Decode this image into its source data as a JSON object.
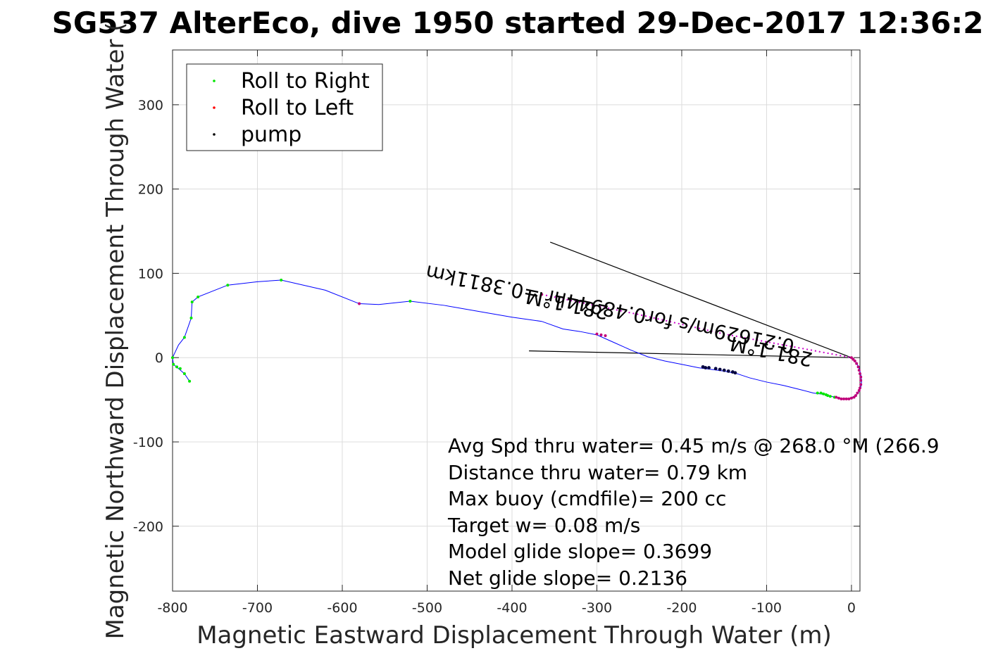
{
  "chart_data": {
    "type": "line",
    "title": "SG537 AlterEco, dive 1950 started 29-Dec-2017 12:36:2",
    "xlabel": "Magnetic Eastward Displacement Through Water (m)",
    "ylabel": "Magnetic Northward Displacement Through Water (",
    "xlim": [
      -800,
      10
    ],
    "ylim": [
      -277,
      365
    ],
    "xticks": [
      -800,
      -700,
      -600,
      -500,
      -400,
      -300,
      -200,
      -100,
      0
    ],
    "xtick_labels": [
      "-800",
      "-700",
      "-600",
      "-500",
      "-400",
      "-300",
      "-200",
      "-100",
      "0"
    ],
    "yticks": [
      -200,
      -100,
      0,
      100,
      200,
      300
    ],
    "ytick_labels": [
      "-200",
      "-100",
      "0",
      "100",
      "200",
      "300"
    ],
    "grid": true,
    "legend_position": "top-left",
    "legend": [
      {
        "label": "Roll to Right",
        "color": "#00e600"
      },
      {
        "label": "Roll to Left",
        "color": "#ff0000"
      },
      {
        "label": "pump",
        "color": "#000000"
      }
    ],
    "track_color": "#0000ff",
    "track": [
      [
        0,
        0
      ],
      [
        5,
        -5
      ],
      [
        9,
        -12
      ],
      [
        11,
        -20
      ],
      [
        12,
        -28
      ],
      [
        11,
        -36
      ],
      [
        8,
        -42
      ],
      [
        3,
        -46
      ],
      [
        -4,
        -49
      ],
      [
        -12,
        -49
      ],
      [
        -20,
        -47
      ],
      [
        -30,
        -44
      ],
      [
        -45,
        -42
      ],
      [
        -60,
        -38
      ],
      [
        -80,
        -33
      ],
      [
        -100,
        -29
      ],
      [
        -120,
        -24
      ],
      [
        -135,
        -19
      ],
      [
        -150,
        -16
      ],
      [
        -165,
        -14
      ],
      [
        -180,
        -12
      ],
      [
        -200,
        -8
      ],
      [
        -220,
        -4
      ],
      [
        -240,
        1
      ],
      [
        -260,
        9
      ],
      [
        -280,
        18
      ],
      [
        -300,
        27
      ],
      [
        -320,
        31
      ],
      [
        -340,
        34
      ],
      [
        -365,
        43
      ],
      [
        -400,
        48
      ],
      [
        -440,
        55
      ],
      [
        -480,
        62
      ],
      [
        -520,
        67
      ],
      [
        -557,
        63
      ],
      [
        -580,
        64
      ],
      [
        -620,
        80
      ],
      [
        -672,
        92
      ],
      [
        -700,
        90
      ],
      [
        -735,
        86
      ],
      [
        -770,
        72
      ],
      [
        -777,
        66
      ],
      [
        -778,
        47
      ],
      [
        -786,
        24
      ],
      [
        -793,
        15
      ],
      [
        -800,
        0
      ],
      [
        -799,
        -8
      ],
      [
        -793,
        -13
      ],
      [
        -786,
        -19
      ],
      [
        -780,
        -28
      ]
    ],
    "roll_right": [
      [
        -20,
        -47
      ],
      [
        -25,
        -46
      ],
      [
        -28,
        -45
      ],
      [
        -30,
        -44
      ],
      [
        -33,
        -43
      ],
      [
        -36,
        -42
      ],
      [
        -40,
        -42
      ],
      [
        -520,
        67
      ],
      [
        -672,
        92
      ],
      [
        -735,
        86
      ],
      [
        -770,
        72
      ],
      [
        -777,
        66
      ],
      [
        -778,
        47
      ],
      [
        -786,
        24
      ],
      [
        -800,
        0
      ],
      [
        -799,
        -8
      ],
      [
        -795,
        -11
      ],
      [
        -791,
        -13
      ],
      [
        -786,
        -19
      ],
      [
        -780,
        -28
      ]
    ],
    "roll_left": [
      [
        -580,
        64
      ],
      [
        -365,
        75
      ],
      [
        -300,
        28
      ],
      [
        -295,
        27
      ],
      [
        -290,
        26
      ],
      [
        0,
        0
      ],
      [
        2,
        -2
      ],
      [
        4,
        -4
      ],
      [
        6,
        -7
      ],
      [
        8,
        -11
      ],
      [
        9,
        -15
      ],
      [
        10,
        -19
      ],
      [
        11,
        -23
      ],
      [
        11,
        -27
      ],
      [
        11,
        -32
      ],
      [
        10,
        -36
      ],
      [
        9,
        -39
      ],
      [
        7,
        -42
      ],
      [
        5,
        -45
      ],
      [
        3,
        -47
      ],
      [
        0,
        -48
      ],
      [
        -3,
        -49
      ],
      [
        -6,
        -49
      ],
      [
        -9,
        -49
      ],
      [
        -12,
        -49
      ],
      [
        -15,
        -48
      ],
      [
        -18,
        -47
      ]
    ],
    "pump": [
      [
        -175,
        -11
      ],
      [
        -172,
        -12
      ],
      [
        -168,
        -12
      ],
      [
        -160,
        -13
      ],
      [
        -155,
        -14
      ],
      [
        -150,
        -15
      ],
      [
        -145,
        -16
      ],
      [
        -140,
        -17
      ],
      [
        -137,
        -18
      ]
    ],
    "magenta_line": [
      [
        -365,
        75
      ],
      [
        -250,
        51
      ],
      [
        -150,
        28
      ],
      [
        -80,
        15
      ],
      [
        0,
        0
      ]
    ],
    "black_lines": [
      [
        [
          -355,
          137
        ],
        [
          0,
          0
        ]
      ],
      [
        [
          -380,
          8
        ],
        [
          0,
          0
        ]
      ]
    ],
    "rotated_labels": [
      {
        "text": "281.1°M",
        "x": -315,
        "y": 65
      },
      {
        "text": "0.21629m/s for0.48944hr =0.3811km",
        "x": -240,
        "y": 50
      },
      {
        "text": "281.1°M",
        "x": -70,
        "y": 12
      }
    ],
    "annotations": [
      "Avg Spd thru water=  0.45 m/s @ 268.0 °M (266.9",
      "Distance thru water=  0.79 km",
      "Max buoy (cmdfile)= 200 cc",
      "Target w= 0.08 m/s",
      "Model glide slope= 0.3699",
      "Net glide slope= 0.2136"
    ]
  }
}
